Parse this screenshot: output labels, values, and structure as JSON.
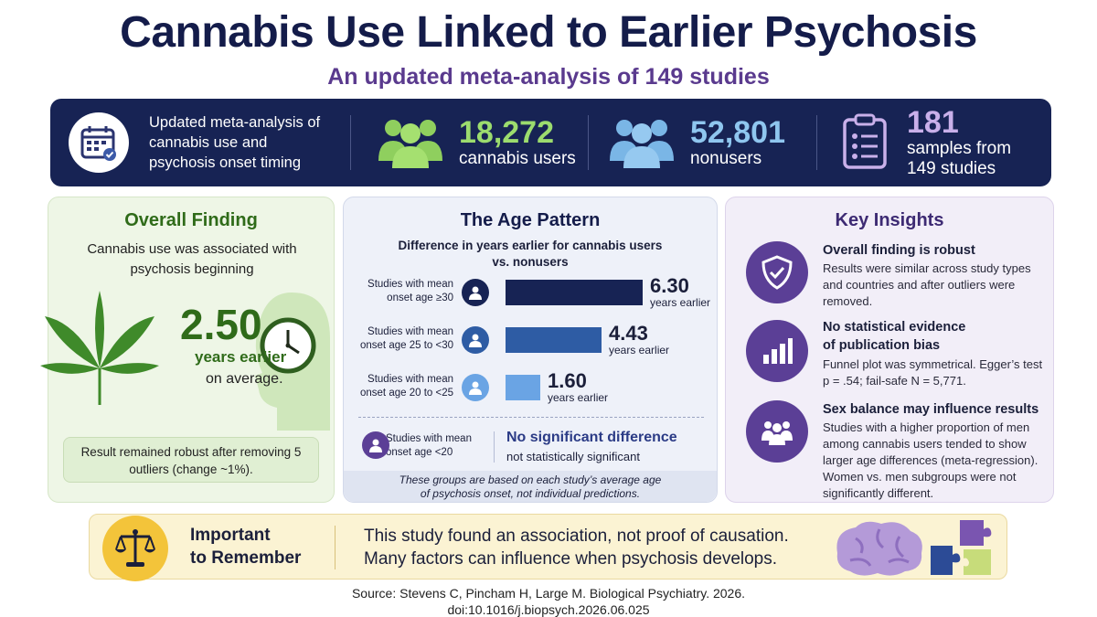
{
  "header": {
    "title": "Cannabis Use Linked to Earlier Psychosis",
    "subtitle": "An updated meta-analysis of 149 studies"
  },
  "stats_bar": {
    "description": "Updated meta-analysis of cannabis use and psychosis onset timing",
    "cannabis_users": {
      "value": "18,272",
      "label": "cannabis users"
    },
    "nonusers": {
      "value": "52,801",
      "label": "nonusers"
    },
    "samples": {
      "value": "181",
      "label_line1": "samples from",
      "label_line2": "149 studies"
    }
  },
  "overall_finding": {
    "title": "Overall Finding",
    "intro": "Cannabis use was associated with psychosis beginning",
    "value": "2.50",
    "unit": "years earlier",
    "qualifier": "on average.",
    "note": "Result remained robust after removing 5 outliers (change ~1%)."
  },
  "age_pattern": {
    "title": "The Age Pattern",
    "description_line1": "Difference in years earlier for cannabis users",
    "description_line2": "vs. nonusers",
    "rows": [
      {
        "label_line1": "Studies with mean",
        "label_line2": "onset age ≥30",
        "value": "6.30",
        "sub": "years earlier"
      },
      {
        "label_line1": "Studies with mean",
        "label_line2": "onset age 25 to <30",
        "value": "4.43",
        "sub": "years earlier"
      },
      {
        "label_line1": "Studies with mean",
        "label_line2": "onset age 20 to <25",
        "value": "1.60",
        "sub": "years earlier"
      }
    ],
    "young_group": {
      "label_line1": "Studies with mean",
      "label_line2": "onset age <20",
      "result": "No significant difference",
      "result_sub": "not statistically significant"
    },
    "footnote_line1": "These groups are based on each study’s average age",
    "footnote_line2": "of psychosis onset, not individual predictions.",
    "colors": [
      "#172354",
      "#2e5ca4",
      "#6aa4e4"
    ]
  },
  "key_insights": {
    "title": "Key Insights",
    "items": [
      {
        "heading_line1": "Overall finding is robust",
        "heading_line2": "",
        "text": "Results were similar across study types and countries and after outliers were removed.",
        "icon": "shield-check-icon"
      },
      {
        "heading_line1": "No statistical evidence",
        "heading_line2": "of publication bias",
        "text": "Funnel plot was symmetrical. Egger’s test p = .54; fail-safe N = 5,771.",
        "icon": "bar-chart-icon"
      },
      {
        "heading_line1": "Sex balance may influence results",
        "heading_line2": "",
        "text": "Studies with a higher proportion of men among cannabis users tended to show larger age differences (meta-regression). Women vs. men subgroups were not significantly different.",
        "icon": "group-icon"
      }
    ]
  },
  "remember": {
    "title_line1": "Important",
    "title_line2": "to Remember",
    "text_line1": "This study found an association, not proof of causation.",
    "text_line2": "Many factors can influence when psychosis develops."
  },
  "source": {
    "line1": "Source: Stevens C, Pincham H, Large M. Biological Psychiatry. 2026.",
    "line2": "doi:10.1016/j.biopsych.2026.06.025"
  }
}
